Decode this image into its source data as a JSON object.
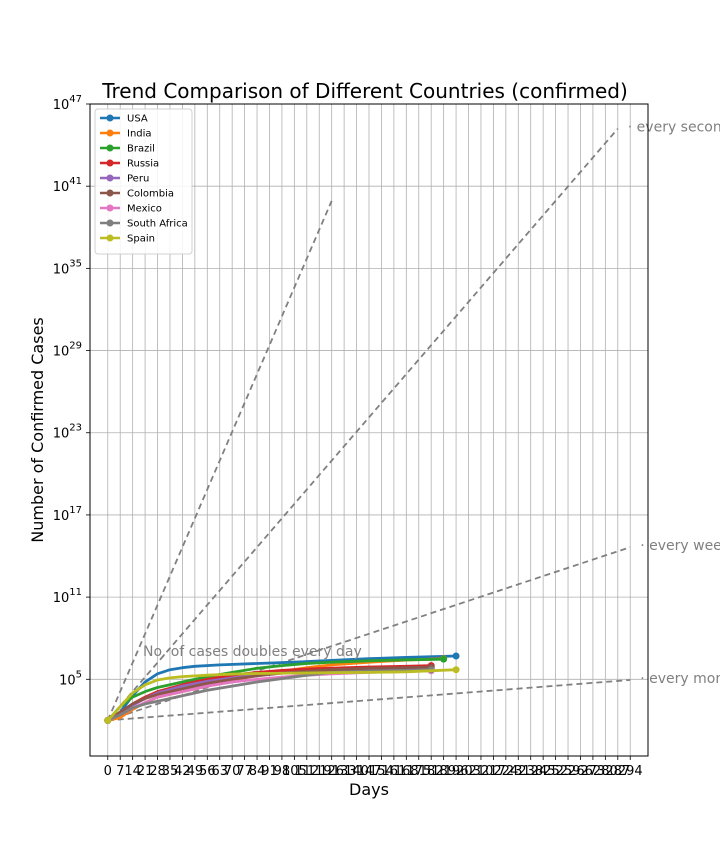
{
  "chart_data": {
    "type": "line",
    "title": "Trend Comparison of Different Countries (confirmed)",
    "xlabel": "Days",
    "ylabel": "Number of Confirmed Cases",
    "xlim": [
      -10,
      304
    ],
    "ylim_exp": [
      -0.6,
      47
    ],
    "yscale": "log",
    "grid": true,
    "legend_position": "top-left",
    "x_ticks": [
      0,
      7,
      14,
      21,
      28,
      35,
      42,
      49,
      56,
      63,
      70,
      77,
      84,
      91,
      98,
      105,
      112,
      119,
      126,
      133,
      140,
      147,
      154,
      161,
      168,
      175,
      182,
      189,
      196,
      203,
      210,
      217,
      224,
      231,
      238,
      245,
      252,
      259,
      266,
      273,
      280,
      287,
      294
    ],
    "y_ticks": [
      {
        "base": "10",
        "exp": "5",
        "value_exp": 5
      },
      {
        "base": "10",
        "exp": "11",
        "value_exp": 11
      },
      {
        "base": "10",
        "exp": "17",
        "value_exp": 17
      },
      {
        "base": "10",
        "exp": "23",
        "value_exp": 23
      },
      {
        "base": "10",
        "exp": "29",
        "value_exp": 29
      },
      {
        "base": "10",
        "exp": "35",
        "value_exp": 35
      },
      {
        "base": "10",
        "exp": "41",
        "value_exp": 41
      },
      {
        "base": "10",
        "exp": "47",
        "value_exp": 47
      }
    ],
    "reference_lines": [
      {
        "label": "every second day",
        "doubling_days": 2,
        "x_end": 287
      },
      {
        "label": "every week",
        "doubling_days": 7,
        "x_end": 294
      },
      {
        "label": "every month",
        "doubling_days": 30,
        "x_end": 294
      },
      {
        "label": "",
        "doubling_days": 1,
        "x_end": 126
      }
    ],
    "annotation": "No. of cases doubles every day",
    "series": [
      {
        "name": "USA",
        "color": "#1f77b4",
        "days": 196,
        "points": [
          [
            0,
            2
          ],
          [
            7,
            2.6
          ],
          [
            14,
            3.8
          ],
          [
            21,
            4.8
          ],
          [
            28,
            5.4
          ],
          [
            35,
            5.7
          ],
          [
            42,
            5.85
          ],
          [
            49,
            5.95
          ],
          [
            63,
            6.05
          ],
          [
            84,
            6.15
          ],
          [
            105,
            6.25
          ],
          [
            126,
            6.38
          ],
          [
            147,
            6.5
          ],
          [
            168,
            6.6
          ],
          [
            196,
            6.7
          ]
        ]
      },
      {
        "name": "India",
        "color": "#ff7f0e",
        "days": 189,
        "points": [
          [
            0,
            2
          ],
          [
            7,
            2.2
          ],
          [
            14,
            2.8
          ],
          [
            21,
            3.3
          ],
          [
            28,
            3.7
          ],
          [
            42,
            4.1
          ],
          [
            56,
            4.5
          ],
          [
            70,
            4.9
          ],
          [
            84,
            5.3
          ],
          [
            98,
            5.6
          ],
          [
            112,
            5.85
          ],
          [
            126,
            6.05
          ],
          [
            147,
            6.25
          ],
          [
            168,
            6.4
          ],
          [
            189,
            6.5
          ]
        ]
      },
      {
        "name": "Brazil",
        "color": "#2ca02c",
        "days": 189,
        "points": [
          [
            0,
            2
          ],
          [
            7,
            3.0
          ],
          [
            14,
            3.7
          ],
          [
            21,
            4.1
          ],
          [
            28,
            4.4
          ],
          [
            42,
            4.8
          ],
          [
            56,
            5.2
          ],
          [
            70,
            5.5
          ],
          [
            84,
            5.8
          ],
          [
            98,
            6.0
          ],
          [
            112,
            6.15
          ],
          [
            126,
            6.25
          ],
          [
            147,
            6.35
          ],
          [
            168,
            6.42
          ],
          [
            189,
            6.47
          ]
        ]
      },
      {
        "name": "Russia",
        "color": "#d62728",
        "days": 182,
        "points": [
          [
            0,
            2
          ],
          [
            7,
            2.6
          ],
          [
            14,
            3.2
          ],
          [
            21,
            3.7
          ],
          [
            28,
            4.1
          ],
          [
            42,
            4.6
          ],
          [
            56,
            5.0
          ],
          [
            70,
            5.3
          ],
          [
            84,
            5.5
          ],
          [
            98,
            5.65
          ],
          [
            112,
            5.75
          ],
          [
            126,
            5.82
          ],
          [
            147,
            5.9
          ],
          [
            168,
            5.95
          ],
          [
            182,
            6.0
          ]
        ]
      },
      {
        "name": "Peru",
        "color": "#9467bd",
        "days": 182,
        "points": [
          [
            0,
            2
          ],
          [
            7,
            2.5
          ],
          [
            14,
            3.1
          ],
          [
            21,
            3.6
          ],
          [
            28,
            4.0
          ],
          [
            42,
            4.5
          ],
          [
            56,
            4.85
          ],
          [
            70,
            5.1
          ],
          [
            84,
            5.3
          ],
          [
            98,
            5.45
          ],
          [
            112,
            5.55
          ],
          [
            126,
            5.62
          ],
          [
            147,
            5.7
          ],
          [
            168,
            5.75
          ],
          [
            182,
            5.78
          ]
        ]
      },
      {
        "name": "Colombia",
        "color": "#8c564b",
        "days": 182,
        "points": [
          [
            0,
            2
          ],
          [
            7,
            2.6
          ],
          [
            14,
            3.2
          ],
          [
            21,
            3.6
          ],
          [
            28,
            3.9
          ],
          [
            42,
            4.3
          ],
          [
            56,
            4.7
          ],
          [
            70,
            5.0
          ],
          [
            84,
            5.25
          ],
          [
            98,
            5.45
          ],
          [
            112,
            5.6
          ],
          [
            126,
            5.7
          ],
          [
            147,
            5.8
          ],
          [
            168,
            5.85
          ],
          [
            182,
            5.88
          ]
        ]
      },
      {
        "name": "Mexico",
        "color": "#e377c2",
        "days": 182,
        "points": [
          [
            0,
            2
          ],
          [
            7,
            2.4
          ],
          [
            14,
            2.9
          ],
          [
            21,
            3.3
          ],
          [
            28,
            3.7
          ],
          [
            42,
            4.1
          ],
          [
            56,
            4.5
          ],
          [
            70,
            4.8
          ],
          [
            84,
            5.0
          ],
          [
            98,
            5.15
          ],
          [
            112,
            5.3
          ],
          [
            126,
            5.4
          ],
          [
            147,
            5.5
          ],
          [
            168,
            5.58
          ],
          [
            182,
            5.62
          ]
        ]
      },
      {
        "name": "South Africa",
        "color": "#7f7f7f",
        "days": 182,
        "points": [
          [
            0,
            2
          ],
          [
            7,
            2.4
          ],
          [
            14,
            2.9
          ],
          [
            21,
            3.2
          ],
          [
            28,
            3.4
          ],
          [
            42,
            3.8
          ],
          [
            56,
            4.2
          ],
          [
            70,
            4.5
          ],
          [
            84,
            4.8
          ],
          [
            98,
            5.05
          ],
          [
            112,
            5.3
          ],
          [
            126,
            5.5
          ],
          [
            147,
            5.6
          ],
          [
            168,
            5.65
          ],
          [
            182,
            5.7
          ]
        ]
      },
      {
        "name": "Spain",
        "color": "#bcbd22",
        "days": 196,
        "points": [
          [
            0,
            2
          ],
          [
            7,
            3.0
          ],
          [
            14,
            4.0
          ],
          [
            21,
            4.6
          ],
          [
            28,
            4.95
          ],
          [
            35,
            5.1
          ],
          [
            42,
            5.2
          ],
          [
            56,
            5.3
          ],
          [
            70,
            5.38
          ],
          [
            84,
            5.42
          ],
          [
            105,
            5.45
          ],
          [
            126,
            5.48
          ],
          [
            147,
            5.5
          ],
          [
            168,
            5.55
          ],
          [
            196,
            5.7
          ]
        ]
      }
    ]
  }
}
